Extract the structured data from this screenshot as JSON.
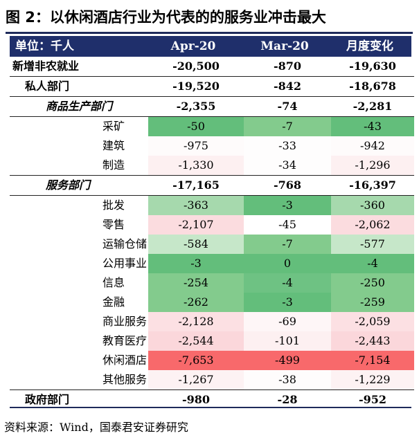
{
  "title": "图 2：以休闲酒店行业为代表的的服务业冲击最大",
  "header": {
    "label": "单位：千人",
    "col1": "Apr-20",
    "col2": "Mar-20",
    "col3": "月度变化"
  },
  "colors": {
    "dark_green": "#63be7b",
    "green": "#83cb8d",
    "light_green": "#c6e7c9",
    "pale_pink": "#fdeaec",
    "pink": "#fbd7db",
    "red": "#f8696b",
    "header_bg": "#1f2f6b"
  },
  "rows": [
    {
      "label": "新增非农就业",
      "apr": "-20,500",
      "mar": "-870",
      "chg": "-19,630"
    },
    {
      "label": "私人部门",
      "apr": "-19,520",
      "mar": "-842",
      "chg": "-18,678"
    },
    {
      "label": "商品生产部门",
      "apr": "-2,355",
      "mar": "-74",
      "chg": "-2,281"
    },
    {
      "label": "采矿",
      "apr": "-50",
      "mar": "-7",
      "chg": "-43"
    },
    {
      "label": "建筑",
      "apr": "-975",
      "mar": "-33",
      "chg": "-942"
    },
    {
      "label": "制造",
      "apr": "-1,330",
      "mar": "-34",
      "chg": "-1,296"
    },
    {
      "label": "服务部门",
      "apr": "-17,165",
      "mar": "-768",
      "chg": "-16,397"
    },
    {
      "label": "批发",
      "apr": "-363",
      "mar": "-3",
      "chg": "-360"
    },
    {
      "label": "零售",
      "apr": "-2,107",
      "mar": "-45",
      "chg": "-2,062"
    },
    {
      "label": "运输仓储",
      "apr": "-584",
      "mar": "-7",
      "chg": "-577"
    },
    {
      "label": "公用事业",
      "apr": "-3",
      "mar": "0",
      "chg": "-4"
    },
    {
      "label": "信息",
      "apr": "-254",
      "mar": "-4",
      "chg": "-250"
    },
    {
      "label": "金融",
      "apr": "-262",
      "mar": "-3",
      "chg": "-259"
    },
    {
      "label": "商业服务",
      "apr": "-2,128",
      "mar": "-69",
      "chg": "-2,059"
    },
    {
      "label": "教育医疗",
      "apr": "-2,544",
      "mar": "-101",
      "chg": "-2,443"
    },
    {
      "label": "休闲酒店",
      "apr": "-7,653",
      "mar": "-499",
      "chg": "-7,154"
    },
    {
      "label": "其他服务",
      "apr": "-1,267",
      "mar": "-38",
      "chg": "-1,229"
    },
    {
      "label": "政府部门",
      "apr": "-980",
      "mar": "-28",
      "chg": "-952"
    }
  ],
  "source": "资料来源：Wind，国泰君安证券研究"
}
